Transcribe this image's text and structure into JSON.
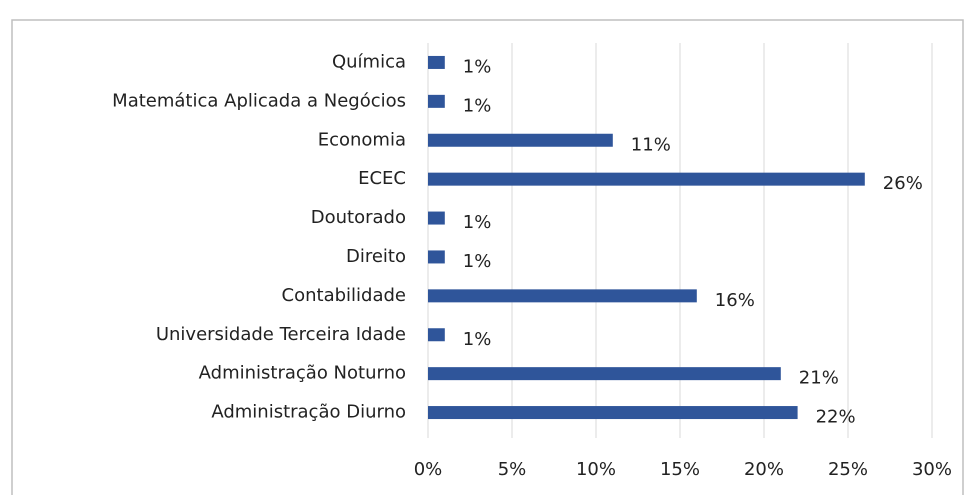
{
  "chart_data": {
    "type": "barh",
    "categories": [
      "Química",
      "Matemática Aplicada a Negócios",
      "Economia",
      "ECEC",
      "Doutorado",
      "Direito",
      "Contabilidade",
      "Universidade Terceira Idade",
      "Administração Noturno",
      "Administração Diurno"
    ],
    "values": [
      1,
      1,
      11,
      26,
      1,
      1,
      16,
      1,
      21,
      22
    ],
    "value_labels": [
      "1%",
      "1%",
      "11%",
      "26%",
      "1%",
      "1%",
      "16%",
      "1%",
      "21%",
      "22%"
    ],
    "color": "#2f559a",
    "xlim": [
      0,
      30
    ],
    "xticks": [
      {
        "value": 0,
        "label": "0%"
      },
      {
        "value": 5,
        "label": "5%"
      },
      {
        "value": 10,
        "label": "10%"
      },
      {
        "value": 15,
        "label": "15%"
      },
      {
        "value": 20,
        "label": "20%"
      },
      {
        "value": 25,
        "label": "25%"
      },
      {
        "value": 30,
        "label": "30%"
      }
    ],
    "grid": true
  }
}
